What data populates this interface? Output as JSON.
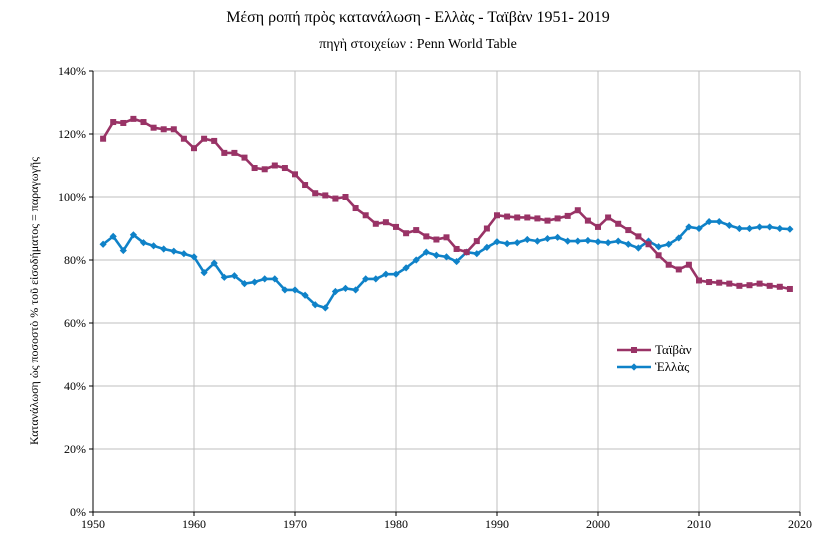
{
  "chart_data": {
    "type": "line",
    "title": "Μέση ροπή πρὸς κατανάλωση - Ελλὰς - Ταϊβὰν  1951- 2019",
    "subtitle": "πηγὴ στοιχείων :  Penn World Table",
    "xlabel": "",
    "ylabel": "Κατανάλωση ὡς ποσοστὸ % τοῦ εἰσοδήματος = παραγωγῆς",
    "xlim": [
      1950,
      2020
    ],
    "ylim": [
      0,
      140
    ],
    "x_ticks": [
      "1950",
      "1960",
      "1970",
      "1980",
      "1990",
      "2000",
      "2010",
      "2020"
    ],
    "y_ticks": [
      "0%",
      "20%",
      "40%",
      "60%",
      "80%",
      "100%",
      "120%",
      "140%"
    ],
    "grid": true,
    "legend_position": "right",
    "x": [
      1951,
      1952,
      1953,
      1954,
      1955,
      1956,
      1957,
      1958,
      1959,
      1960,
      1961,
      1962,
      1963,
      1964,
      1965,
      1966,
      1967,
      1968,
      1969,
      1970,
      1971,
      1972,
      1973,
      1974,
      1975,
      1976,
      1977,
      1978,
      1979,
      1980,
      1981,
      1982,
      1983,
      1984,
      1985,
      1986,
      1987,
      1988,
      1989,
      1990,
      1991,
      1992,
      1993,
      1994,
      1995,
      1996,
      1997,
      1998,
      1999,
      2000,
      2001,
      2002,
      2003,
      2004,
      2005,
      2006,
      2007,
      2008,
      2009,
      2010,
      2011,
      2012,
      2013,
      2014,
      2015,
      2016,
      2017,
      2018,
      2019
    ],
    "series": [
      {
        "name": "Ταϊβὰν",
        "color": "#993366",
        "marker": "square",
        "values": [
          118.5,
          123.8,
          123.5,
          124.8,
          123.8,
          122.0,
          121.5,
          121.5,
          118.5,
          115.5,
          118.5,
          117.8,
          114.0,
          114.0,
          112.5,
          109.2,
          108.8,
          110.0,
          109.2,
          107.2,
          103.8,
          101.2,
          100.5,
          99.5,
          100.0,
          96.5,
          94.2,
          91.5,
          92.0,
          90.5,
          88.5,
          89.5,
          87.5,
          86.5,
          87.2,
          83.5,
          82.5,
          86.0,
          90.0,
          94.2,
          93.8,
          93.5,
          93.5,
          93.2,
          92.5,
          93.2,
          94.0,
          95.8,
          92.5,
          90.5,
          93.5,
          91.5,
          89.5,
          87.5,
          85.0,
          81.5,
          78.5,
          77.0,
          78.5,
          73.5,
          73.0,
          72.8,
          72.5,
          71.8,
          72.0,
          72.5,
          71.8,
          71.5,
          70.8
        ]
      },
      {
        "name": "Ἑλλὰς",
        "color": "#0f82c8",
        "marker": "diamond",
        "values": [
          85.0,
          87.5,
          83.0,
          88.0,
          85.5,
          84.5,
          83.5,
          82.8,
          82.0,
          81.0,
          76.0,
          79.0,
          74.5,
          75.0,
          72.5,
          73.0,
          74.0,
          74.0,
          70.5,
          70.5,
          68.8,
          65.8,
          64.8,
          70.0,
          71.0,
          70.5,
          74.0,
          74.0,
          75.5,
          75.5,
          77.5,
          80.0,
          82.5,
          81.5,
          81.0,
          79.5,
          82.5,
          82.0,
          84.0,
          85.8,
          85.2,
          85.5,
          86.5,
          86.0,
          86.8,
          87.2,
          86.0,
          86.0,
          86.2,
          85.8,
          85.5,
          86.0,
          85.0,
          83.8,
          86.0,
          84.2,
          85.0,
          87.0,
          90.5,
          90.0,
          92.2,
          92.2,
          91.0,
          90.0,
          90.0,
          90.5,
          90.5,
          90.0,
          89.8
        ]
      }
    ]
  }
}
